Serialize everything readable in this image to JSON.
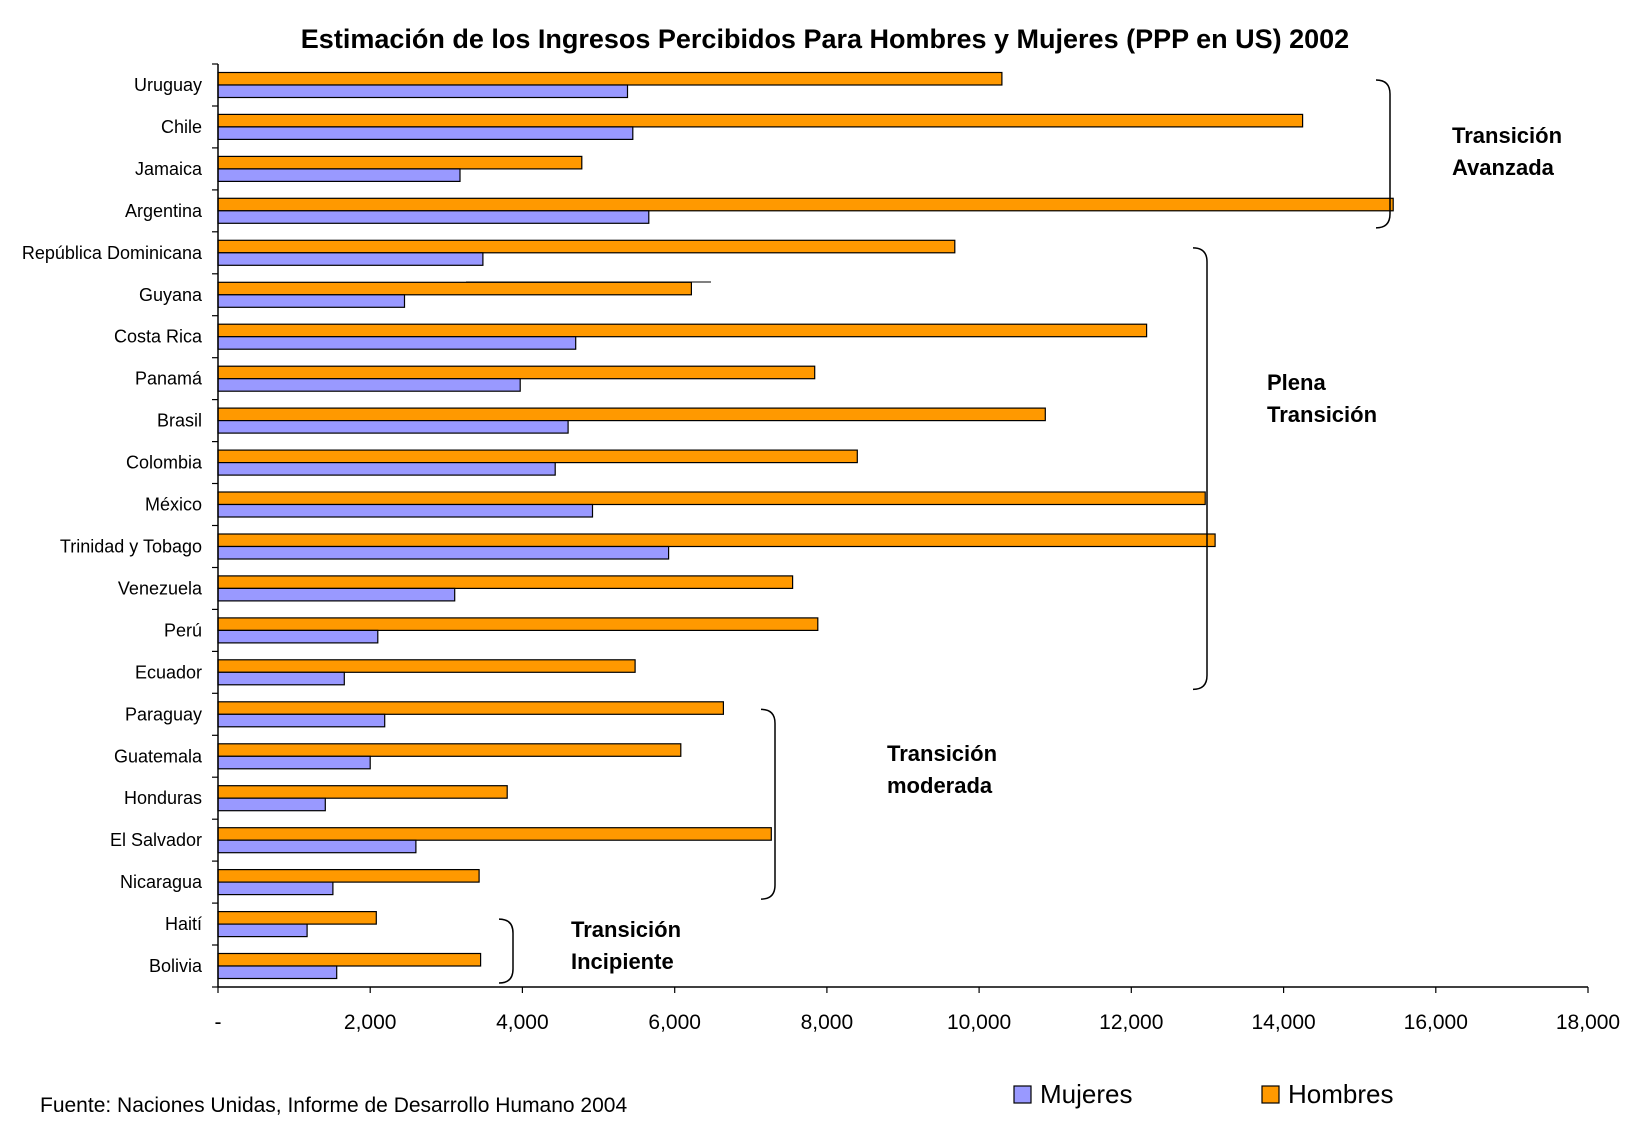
{
  "chart_data": {
    "type": "bar",
    "orientation": "horizontal",
    "title": "Estimación de los Ingresos Percibidos  Para Hombres y Mujeres (PPP en US) 2002",
    "categories": [
      "Uruguay",
      "Chile",
      "Jamaica",
      "Argentina",
      "República Dominicana",
      "Guyana",
      "Costa Rica",
      "Panamá",
      "Brasil",
      "Colombia",
      "México",
      "Trinidad y Tobago",
      "Venezuela",
      "Perú",
      "Ecuador",
      "Paraguay",
      "Guatemala",
      "Honduras",
      "El Salvador",
      "Nicaragua",
      "Haití",
      "Bolivia"
    ],
    "series": [
      {
        "name": "Hombres",
        "color": "#FF9900",
        "values": [
          10300,
          14250,
          4780,
          15440,
          9680,
          6220,
          12200,
          7840,
          10870,
          8400,
          12970,
          13100,
          7550,
          7880,
          5480,
          6640,
          6080,
          3800,
          7270,
          3430,
          2080,
          3450
        ]
      },
      {
        "name": "Mujeres",
        "color": "#9999FF",
        "values": [
          5380,
          5450,
          3180,
          5660,
          3480,
          2450,
          4700,
          3970,
          4600,
          4430,
          4920,
          5920,
          3110,
          2100,
          1660,
          2190,
          2000,
          1410,
          2600,
          1510,
          1170,
          1560
        ]
      }
    ],
    "xlim": [
      0,
      18000
    ],
    "xticks": [
      "-",
      "2,000",
      "4,000",
      "6,000",
      "8,000",
      "10,000",
      "12,000",
      "14,000",
      "16,000",
      "18,000"
    ],
    "xtick_values": [
      0,
      2000,
      4000,
      6000,
      8000,
      10000,
      12000,
      14000,
      16000,
      18000
    ],
    "grid": false,
    "legend_position": "bottom-right",
    "legend_order": [
      "Mujeres",
      "Hombres"
    ],
    "groups": [
      {
        "lines": [
          "Transición",
          "Avanzada"
        ],
        "from": "Uruguay",
        "to": "Argentina"
      },
      {
        "lines": [
          "Plena",
          "Transición"
        ],
        "from": "República Dominicana",
        "to": "Ecuador"
      },
      {
        "lines": [
          "Transición",
          "moderada"
        ],
        "from": "Paraguay",
        "to": "Nicaragua"
      },
      {
        "lines": [
          "Transición",
          "Incipiente"
        ],
        "from": "Haití",
        "to": "Bolivia"
      }
    ],
    "source": "Fuente: Naciones Unidas, Informe de Desarrollo Humano 2004"
  }
}
